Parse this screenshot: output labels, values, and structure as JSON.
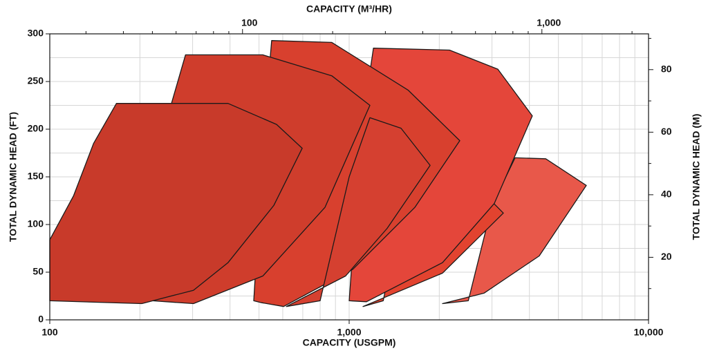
{
  "chart_data": {
    "type": "region",
    "title_top": "CAPACITY (M³/HR)",
    "xlabel": "CAPACITY (USGPM)",
    "ylabel": "TOTAL DYNAMIC HEAD (FT)",
    "y2label": "TOTAL DYNAMIC HEAD (M)",
    "xscale": "log",
    "xlim": [
      100,
      10000
    ],
    "xticks": [
      100,
      {
        "value": 1000,
        "label": "1,000"
      },
      {
        "value": 10000,
        "label": "10,000"
      }
    ],
    "xminorticks": [
      200,
      300,
      400,
      500,
      600,
      700,
      800,
      900,
      2000,
      3000,
      4000,
      5000,
      6000,
      7000,
      8000,
      9000
    ],
    "x2lim": [
      22.71,
      2271
    ],
    "x2ticks": [
      100,
      {
        "value": 1000,
        "label": "1,000"
      }
    ],
    "x2minorticks": [
      30,
      40,
      50,
      60,
      70,
      80,
      90,
      200,
      300,
      400,
      500,
      600,
      700,
      800,
      900,
      2000
    ],
    "ylim": [
      0,
      300
    ],
    "yticks": [
      0,
      50,
      100,
      150,
      200,
      250,
      300
    ],
    "yminorticks": [
      25,
      75,
      125,
      175,
      225,
      275
    ],
    "y2lim": [
      0,
      91.44
    ],
    "y2ticks": [
      20,
      40,
      60,
      80
    ],
    "y2minorticks": [
      10,
      30,
      50,
      70,
      90
    ],
    "grid": true,
    "series": [
      {
        "color": "#e8584a",
        "x": [
          2500,
          3000,
          3584,
          4535,
          6197,
          4315,
          2821,
          2050
        ],
        "y": [
          20,
          120,
          170,
          169,
          141,
          67,
          28,
          17
        ]
      },
      {
        "color": "#e2432f",
        "x": [
          1300,
          1500,
          1845,
          2536,
          3274,
          2050,
          1112
        ],
        "y": [
          20,
          120,
          156,
          147,
          112,
          49,
          14
        ]
      },
      {
        "color": "#e4463a",
        "x": [
          1000,
          1100,
          1205,
          2163,
          3137,
          4090,
          3054,
          2050,
          1142
        ],
        "y": [
          20,
          200,
          285,
          283,
          263,
          214,
          122,
          60,
          19
        ]
      },
      {
        "color": "#d8402e",
        "x": [
          480,
          520,
          551,
          875,
          1573,
          2342,
          1657,
          1028,
          604,
          510
        ],
        "y": [
          20,
          200,
          293,
          291,
          241,
          188,
          118,
          53,
          14,
          18
        ]
      },
      {
        "color": "#d54030",
        "x": [
          800,
          1000,
          1173,
          1490,
          1864,
          1340,
          973,
          617
        ],
        "y": [
          20,
          150,
          212,
          201,
          162,
          96,
          46,
          14
        ]
      },
      {
        "color": "#cf3d2c",
        "x": [
          220,
          235,
          255,
          284,
          515,
          875,
          1173,
          830,
          515,
          302
        ],
        "y": [
          20,
          120,
          227,
          278,
          278,
          256,
          225,
          118,
          46,
          17
        ]
      },
      {
        "color": "#c83a2a",
        "x": [
          100,
          120,
          140,
          167,
          394,
          572,
          697,
          560,
          394,
          302,
          203,
          100
        ],
        "y": [
          84,
          130,
          185,
          227,
          227,
          205,
          180,
          120,
          60,
          31,
          17,
          20
        ]
      }
    ]
  }
}
